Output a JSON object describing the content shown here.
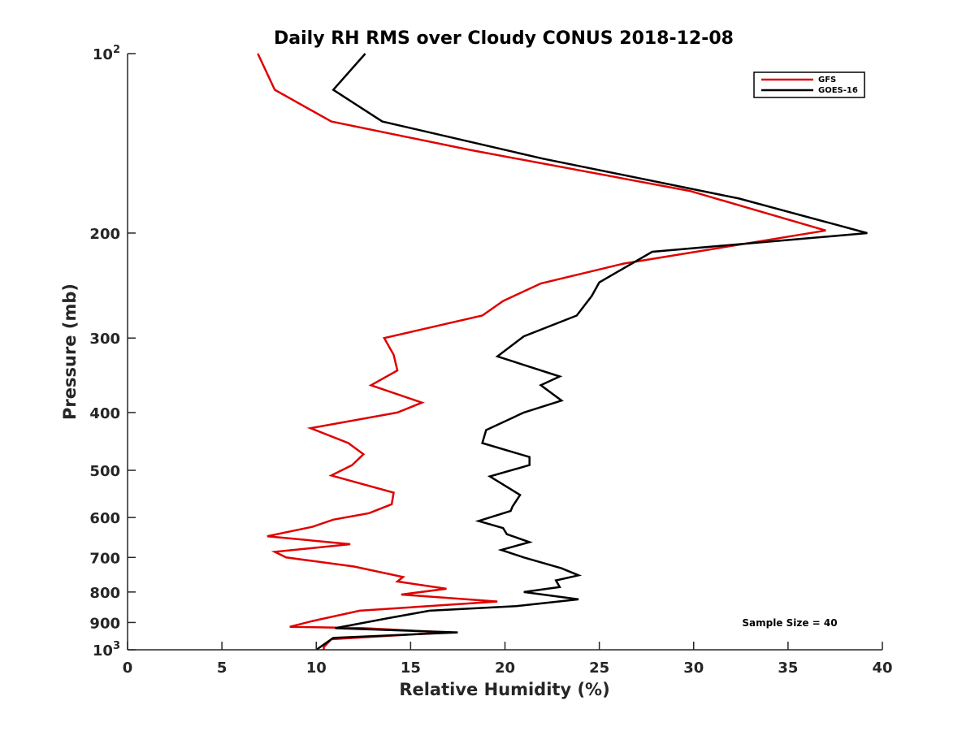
{
  "chart_data": {
    "type": "line",
    "title": "Daily RH RMS over Cloudy CONUS 2018-12-08",
    "xlabel": "Relative Humidity (%)",
    "ylabel": "Pressure (mb)",
    "xlim": [
      0,
      40
    ],
    "ylim": [
      100,
      1000
    ],
    "yscale": "log",
    "y_reversed": true,
    "grid": false,
    "legend_position": "top-right",
    "x_ticks": [
      0,
      5,
      10,
      15,
      20,
      25,
      30,
      35,
      40
    ],
    "x_tick_labels": [
      "0",
      "5",
      "10",
      "15",
      "20",
      "25",
      "30",
      "35",
      "40"
    ],
    "y_ticks": [
      100,
      200,
      300,
      400,
      500,
      600,
      700,
      800,
      900,
      1000
    ],
    "y_tick_labels": [
      {
        "base": "10",
        "sup": "2"
      },
      {
        "base": "200",
        "sup": ""
      },
      {
        "base": "300",
        "sup": ""
      },
      {
        "base": "400",
        "sup": ""
      },
      {
        "base": "500",
        "sup": ""
      },
      {
        "base": "600",
        "sup": ""
      },
      {
        "base": "700",
        "sup": ""
      },
      {
        "base": "800",
        "sup": ""
      },
      {
        "base": "900",
        "sup": ""
      },
      {
        "base": "10",
        "sup": "3"
      }
    ],
    "annotation": "Sample Size = 40",
    "series": [
      {
        "name": "GFS",
        "color": "#e00000",
        "points": [
          [
            6.9,
            100
          ],
          [
            7.8,
            115
          ],
          [
            10.8,
            130
          ],
          [
            18.1,
            145
          ],
          [
            29.8,
            170
          ],
          [
            37.0,
            198
          ],
          [
            26.3,
            225
          ],
          [
            21.9,
            243
          ],
          [
            19.9,
            260
          ],
          [
            18.8,
            275
          ],
          [
            13.6,
            300
          ],
          [
            14.1,
            320
          ],
          [
            14.3,
            340
          ],
          [
            12.9,
            360
          ],
          [
            15.6,
            385
          ],
          [
            14.3,
            400
          ],
          [
            9.7,
            425
          ],
          [
            11.7,
            450
          ],
          [
            12.5,
            470
          ],
          [
            11.9,
            490
          ],
          [
            10.8,
            510
          ],
          [
            14.1,
            545
          ],
          [
            14.0,
            570
          ],
          [
            12.8,
            590
          ],
          [
            10.9,
            605
          ],
          [
            9.8,
            622
          ],
          [
            7.4,
            645
          ],
          [
            11.8,
            665
          ],
          [
            7.8,
            685
          ],
          [
            8.4,
            700
          ],
          [
            12.0,
            725
          ],
          [
            14.6,
            755
          ],
          [
            14.3,
            768
          ],
          [
            16.9,
            790
          ],
          [
            14.5,
            808
          ],
          [
            19.6,
            830
          ],
          [
            12.3,
            860
          ],
          [
            9.8,
            895
          ],
          [
            8.6,
            915
          ],
          [
            12.5,
            920
          ],
          [
            16.9,
            935
          ],
          [
            10.8,
            960
          ],
          [
            10.4,
            990
          ],
          [
            10.4,
            1000
          ]
        ]
      },
      {
        "name": "GOES-16",
        "color": "#000000",
        "points": [
          [
            12.6,
            100
          ],
          [
            10.9,
            115
          ],
          [
            13.5,
            130
          ],
          [
            22.0,
            150
          ],
          [
            32.4,
            175
          ],
          [
            39.2,
            200
          ],
          [
            27.8,
            215
          ],
          [
            25.0,
            242
          ],
          [
            24.6,
            255
          ],
          [
            23.8,
            275
          ],
          [
            21.0,
            298
          ],
          [
            19.6,
            322
          ],
          [
            22.9,
            348
          ],
          [
            21.9,
            360
          ],
          [
            23.0,
            382
          ],
          [
            21.0,
            400
          ],
          [
            19.0,
            428
          ],
          [
            18.8,
            450
          ],
          [
            21.3,
            475
          ],
          [
            21.3,
            490
          ],
          [
            19.2,
            512
          ],
          [
            20.8,
            550
          ],
          [
            20.4,
            575
          ],
          [
            20.3,
            585
          ],
          [
            18.6,
            608
          ],
          [
            19.9,
            625
          ],
          [
            20.1,
            640
          ],
          [
            21.3,
            660
          ],
          [
            19.8,
            680
          ],
          [
            21.0,
            700
          ],
          [
            23.0,
            730
          ],
          [
            23.9,
            750
          ],
          [
            22.7,
            765
          ],
          [
            22.9,
            785
          ],
          [
            21.0,
            800
          ],
          [
            23.9,
            823
          ],
          [
            20.6,
            845
          ],
          [
            16.0,
            860
          ],
          [
            13.8,
            885
          ],
          [
            11.0,
            920
          ],
          [
            17.5,
            935
          ],
          [
            10.9,
            955
          ],
          [
            10.0,
            1000
          ]
        ]
      }
    ]
  }
}
